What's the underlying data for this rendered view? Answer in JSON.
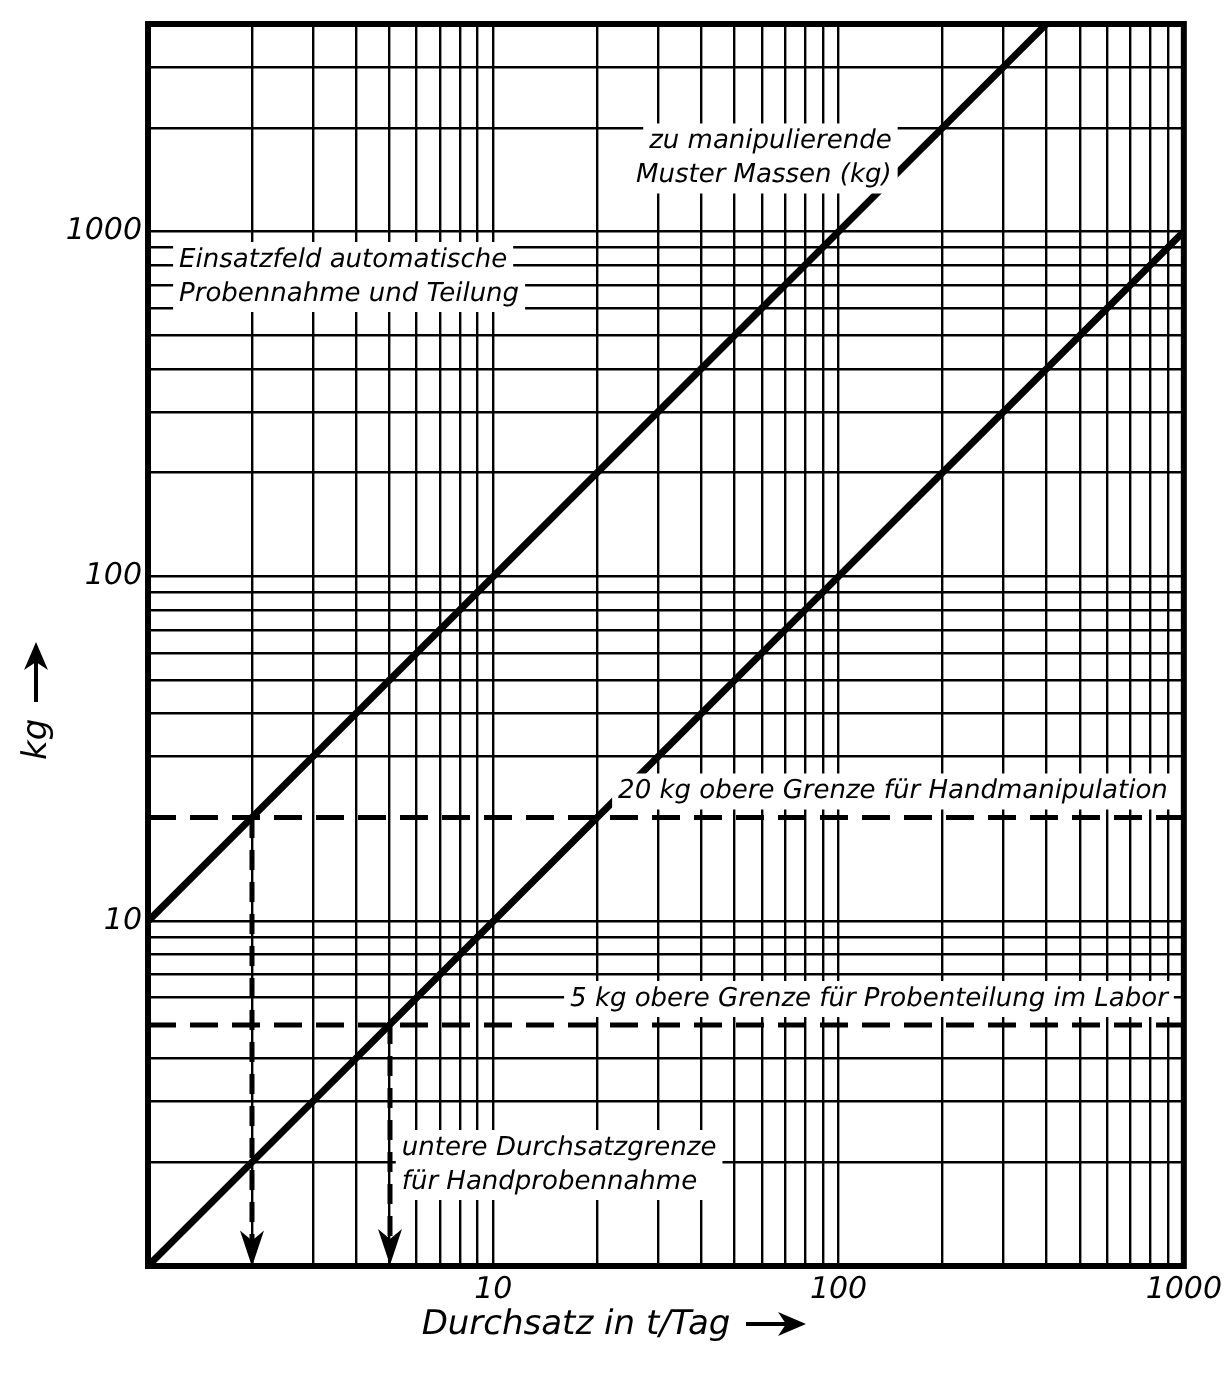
{
  "chart_data": {
    "type": "line",
    "xlabel": "Durchsatz in t/Tag",
    "ylabel": "kg",
    "log": "xy",
    "grid": true,
    "legend": false,
    "xlim": [
      1,
      1000
    ],
    "ylim": [
      1,
      4000
    ],
    "xticks": [
      {
        "value": 1,
        "label": null
      },
      {
        "value": 2,
        "label": null
      },
      {
        "value": 3,
        "label": null
      },
      {
        "value": 4,
        "label": null
      },
      {
        "value": 5,
        "label": null
      },
      {
        "value": 6,
        "label": null
      },
      {
        "value": 7,
        "label": null
      },
      {
        "value": 8,
        "label": null
      },
      {
        "value": 9,
        "label": null
      },
      10,
      {
        "value": 20,
        "label": null
      },
      {
        "value": 30,
        "label": null
      },
      {
        "value": 40,
        "label": null
      },
      {
        "value": 50,
        "label": null
      },
      {
        "value": 60,
        "label": null
      },
      {
        "value": 70,
        "label": null
      },
      {
        "value": 80,
        "label": null
      },
      {
        "value": 90,
        "label": null
      },
      100,
      {
        "value": 200,
        "label": null
      },
      {
        "value": 300,
        "label": null
      },
      {
        "value": 400,
        "label": null
      },
      {
        "value": 500,
        "label": null
      },
      {
        "value": 600,
        "label": null
      },
      {
        "value": 700,
        "label": null
      },
      {
        "value": 800,
        "label": null
      },
      {
        "value": 900,
        "label": null
      },
      1000
    ],
    "yticks": [
      {
        "value": 1,
        "label": null
      },
      {
        "value": 2,
        "label": null
      },
      {
        "value": 3,
        "label": null
      },
      {
        "value": 4,
        "label": null
      },
      {
        "value": 6,
        "label": null
      },
      {
        "value": 7,
        "label": null
      },
      {
        "value": 8,
        "label": null
      },
      {
        "value": 9,
        "label": null
      },
      10,
      {
        "value": 30,
        "label": null
      },
      {
        "value": 40,
        "label": null
      },
      {
        "value": 50,
        "label": null
      },
      {
        "value": 60,
        "label": null
      },
      {
        "value": 70,
        "label": null
      },
      {
        "value": 80,
        "label": null
      },
      {
        "value": 90,
        "label": null
      },
      100,
      {
        "value": 200,
        "label": null
      },
      {
        "value": 300,
        "label": null
      },
      {
        "value": 400,
        "label": null
      },
      {
        "value": 500,
        "label": null
      },
      {
        "value": 600,
        "label": null
      },
      {
        "value": 700,
        "label": null
      },
      {
        "value": 800,
        "label": null
      },
      {
        "value": 900,
        "label": null
      },
      1000,
      {
        "value": 2000,
        "label": null
      },
      {
        "value": 3000,
        "label": null
      },
      {
        "value": 4000,
        "label": null
      }
    ],
    "series": [
      {
        "name": "zu manipulierende Muster Massen (kg)",
        "color": "#000000",
        "x": [
          1,
          400
        ],
        "values": [
          10,
          4000
        ]
      },
      {
        "color": "#000000",
        "x": [
          1,
          1000
        ],
        "values": [
          1,
          1000
        ]
      }
    ],
    "ref_lines": [
      {
        "axis": "y",
        "value": 20,
        "label": "20 kg obere Grenze für Handmanipulation",
        "color": "#000000",
        "line_style": "dashed"
      },
      {
        "axis": "y",
        "value": 5,
        "label": "5 kg obere Grenze für Probenteilung im Labor",
        "color": "#000000",
        "line_style": "dashed"
      }
    ],
    "annotations": [
      "Einsatzfeld automatische Probennahme und Teilung",
      "untere Durchsatzgrenze für Handprobennahme"
    ]
  }
}
